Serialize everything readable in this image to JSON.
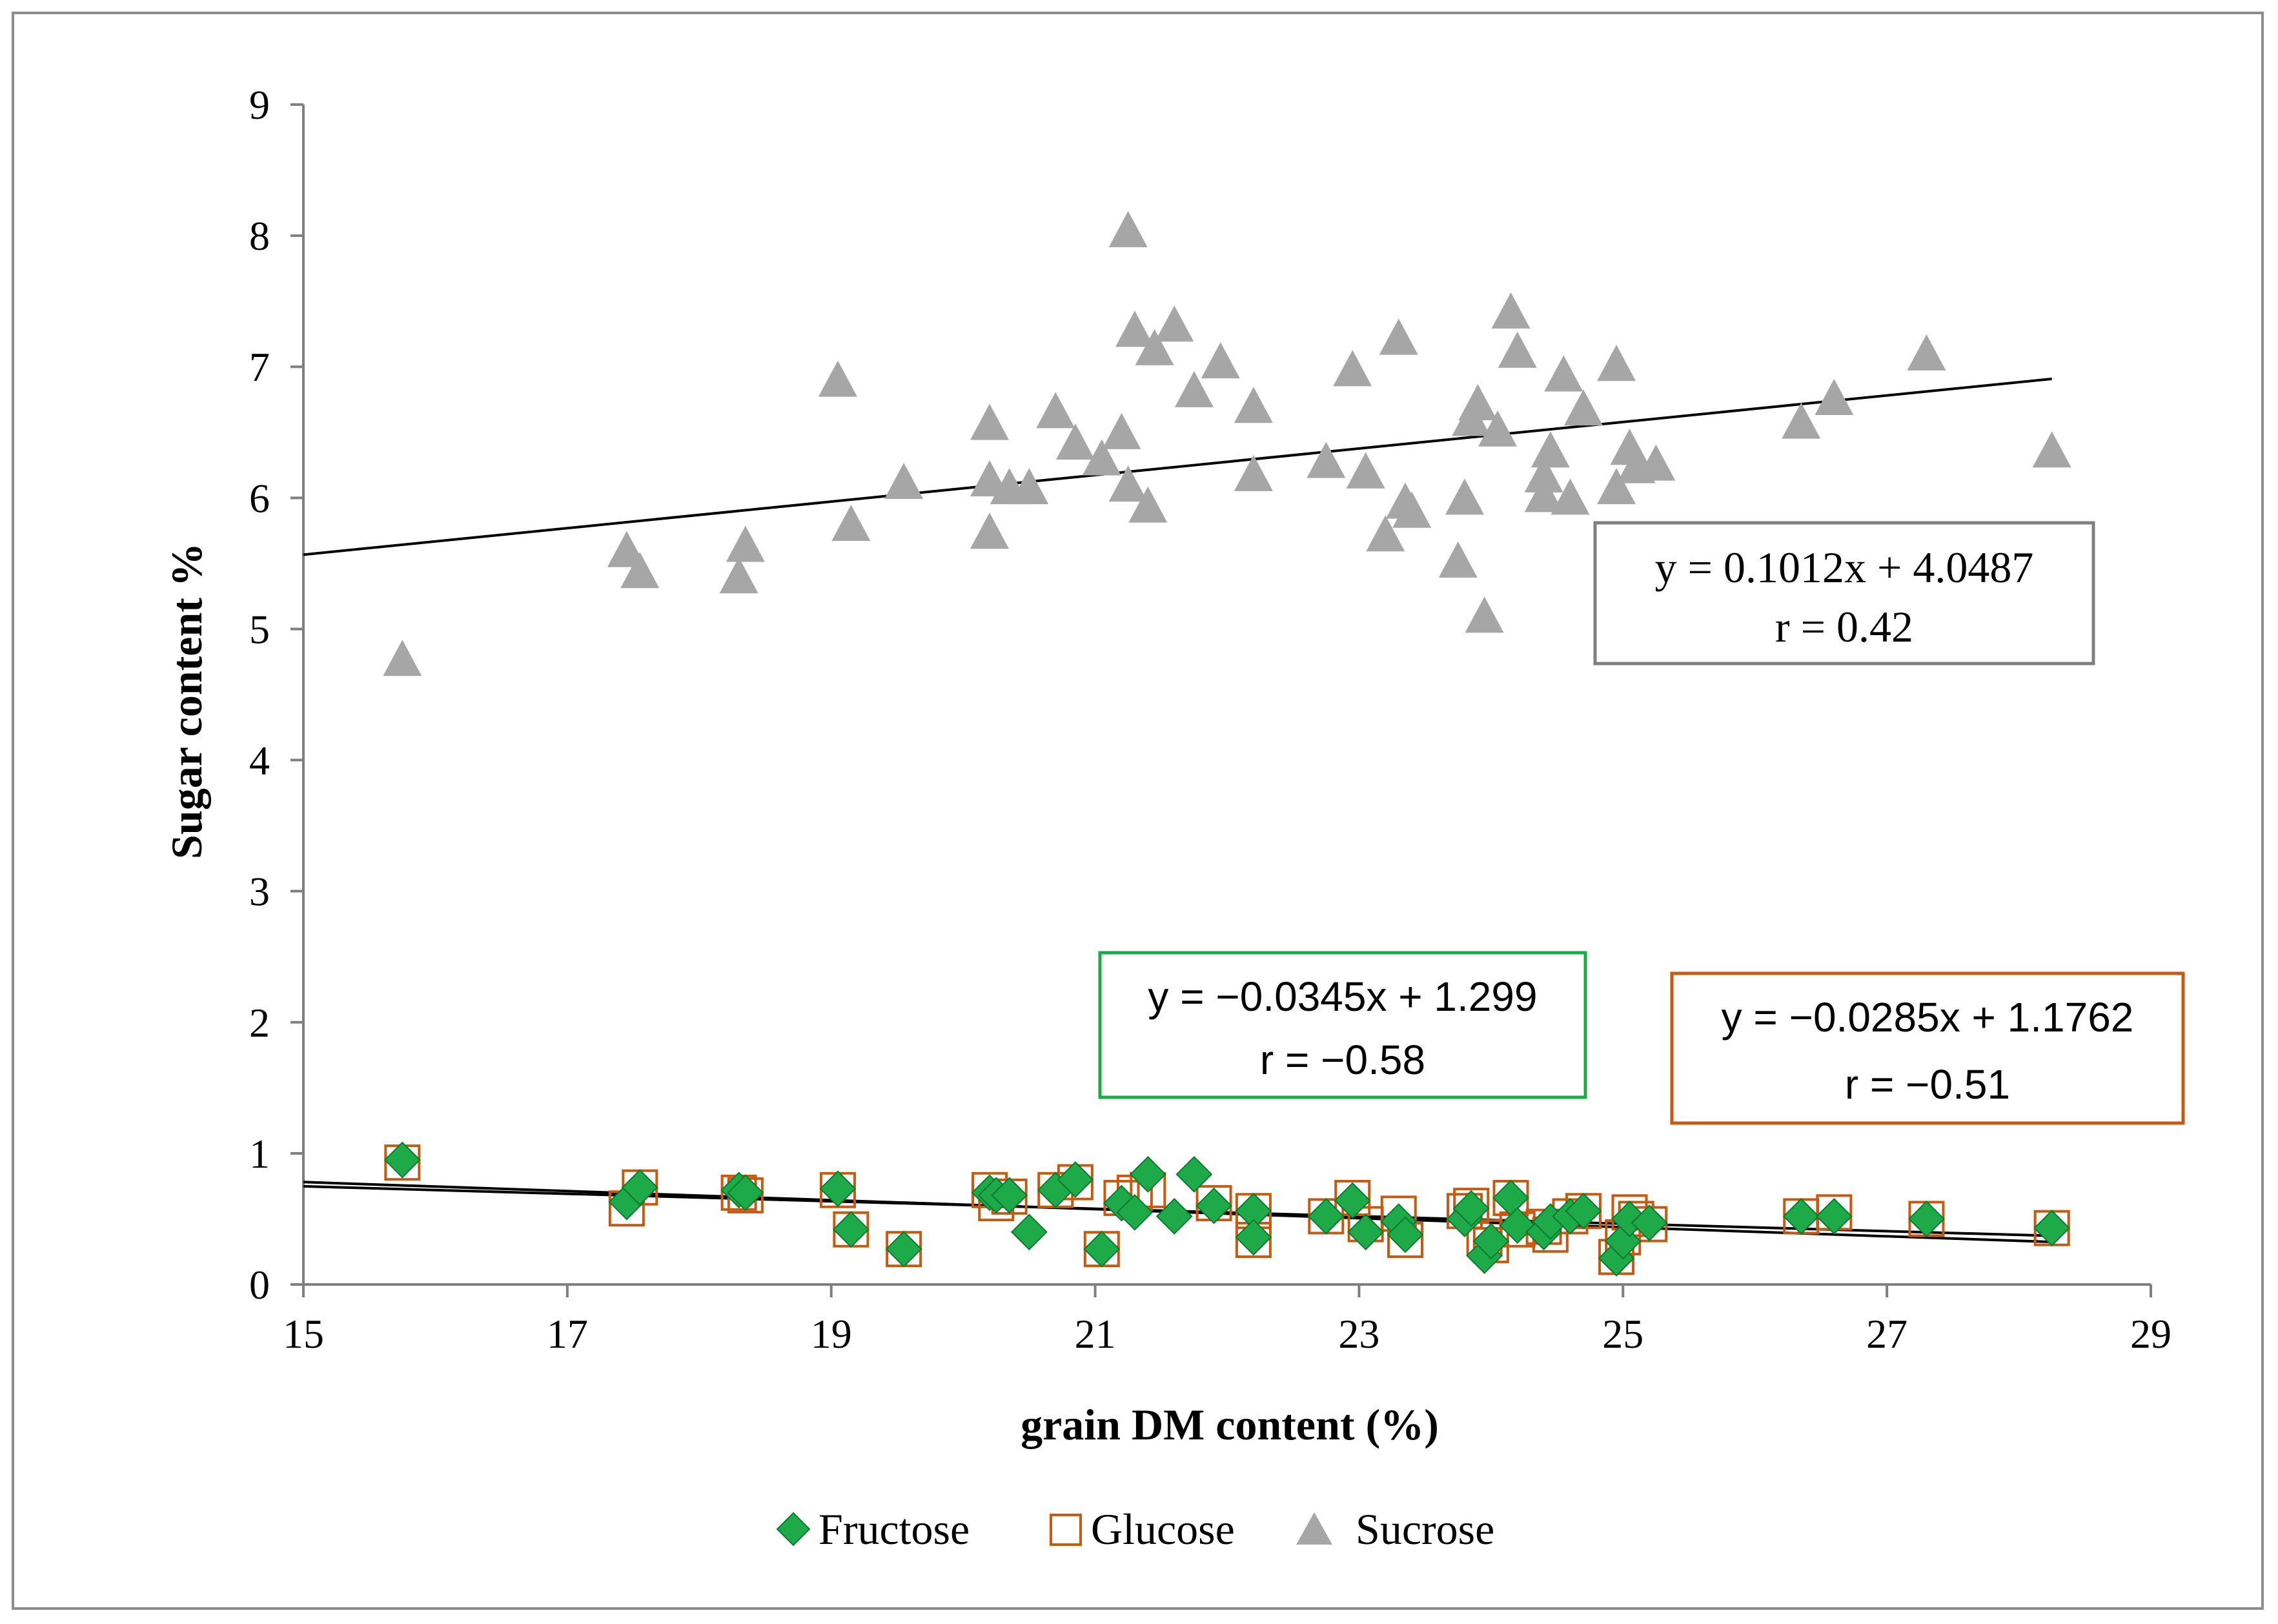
{
  "chart_data": {
    "type": "scatter",
    "title": "",
    "xlabel": "grain DM content (%)",
    "ylabel": "Sugar content %",
    "xlim": [
      15,
      29
    ],
    "ylim": [
      0,
      9
    ],
    "xticks": [
      15,
      17,
      19,
      21,
      23,
      25,
      27,
      29
    ],
    "yticks": [
      0,
      1,
      2,
      3,
      4,
      5,
      6,
      7,
      8,
      9
    ],
    "grid": false,
    "legend_position": "bottom",
    "colors": {
      "fructose": "#1faa4a",
      "fructose_stroke": "#0b7a30",
      "glucose": "#c55a11",
      "sucrose": "#a6a6a6",
      "trendline": "#000000",
      "frame": "#8c8c8c",
      "axis": "#7f7f7f"
    },
    "series": [
      {
        "name": "Fructose",
        "marker": "diamond",
        "points": [
          [
            15.75,
            0.95
          ],
          [
            17.45,
            0.63
          ],
          [
            17.55,
            0.74
          ],
          [
            18.3,
            0.72
          ],
          [
            18.35,
            0.7
          ],
          [
            19.05,
            0.73
          ],
          [
            19.15,
            0.42
          ],
          [
            19.55,
            0.27
          ],
          [
            20.2,
            0.7
          ],
          [
            20.25,
            0.68
          ],
          [
            20.35,
            0.68
          ],
          [
            20.5,
            0.4
          ],
          [
            20.7,
            0.72
          ],
          [
            20.85,
            0.8
          ],
          [
            21.05,
            0.27
          ],
          [
            21.2,
            0.62
          ],
          [
            21.3,
            0.55
          ],
          [
            21.4,
            0.84
          ],
          [
            21.6,
            0.52
          ],
          [
            21.75,
            0.84
          ],
          [
            21.9,
            0.6
          ],
          [
            22.2,
            0.56
          ],
          [
            22.2,
            0.36
          ],
          [
            22.75,
            0.52
          ],
          [
            22.95,
            0.64
          ],
          [
            23.05,
            0.4
          ],
          [
            23.3,
            0.48
          ],
          [
            23.35,
            0.38
          ],
          [
            23.8,
            0.5
          ],
          [
            23.85,
            0.58
          ],
          [
            23.95,
            0.22
          ],
          [
            24.0,
            0.33
          ],
          [
            24.15,
            0.66
          ],
          [
            24.2,
            0.45
          ],
          [
            24.4,
            0.4
          ],
          [
            24.45,
            0.48
          ],
          [
            24.6,
            0.52
          ],
          [
            24.7,
            0.56
          ],
          [
            24.95,
            0.2
          ],
          [
            25.0,
            0.33
          ],
          [
            25.05,
            0.5
          ],
          [
            25.2,
            0.47
          ],
          [
            26.35,
            0.52
          ],
          [
            26.6,
            0.52
          ],
          [
            27.3,
            0.5
          ],
          [
            28.25,
            0.43
          ]
        ]
      },
      {
        "name": "Glucose",
        "marker": "open-square",
        "points": [
          [
            15.75,
            0.93
          ],
          [
            17.45,
            0.58
          ],
          [
            17.55,
            0.74
          ],
          [
            18.3,
            0.7
          ],
          [
            18.35,
            0.68
          ],
          [
            19.05,
            0.72
          ],
          [
            19.15,
            0.42
          ],
          [
            19.55,
            0.27
          ],
          [
            20.2,
            0.72
          ],
          [
            20.25,
            0.62
          ],
          [
            20.35,
            0.67
          ],
          [
            20.7,
            0.72
          ],
          [
            20.85,
            0.78
          ],
          [
            21.05,
            0.27
          ],
          [
            21.2,
            0.66
          ],
          [
            21.3,
            0.7
          ],
          [
            21.4,
            0.72
          ],
          [
            21.9,
            0.62
          ],
          [
            22.2,
            0.56
          ],
          [
            22.2,
            0.34
          ],
          [
            22.75,
            0.52
          ],
          [
            22.95,
            0.66
          ],
          [
            23.05,
            0.46
          ],
          [
            23.3,
            0.54
          ],
          [
            23.35,
            0.34
          ],
          [
            23.8,
            0.56
          ],
          [
            23.85,
            0.6
          ],
          [
            23.95,
            0.36
          ],
          [
            24.0,
            0.3
          ],
          [
            24.15,
            0.66
          ],
          [
            24.2,
            0.42
          ],
          [
            24.4,
            0.44
          ],
          [
            24.45,
            0.38
          ],
          [
            24.6,
            0.52
          ],
          [
            24.7,
            0.56
          ],
          [
            24.95,
            0.21
          ],
          [
            25.0,
            0.36
          ],
          [
            25.05,
            0.55
          ],
          [
            25.1,
            0.5
          ],
          [
            25.2,
            0.46
          ],
          [
            26.35,
            0.52
          ],
          [
            26.6,
            0.55
          ],
          [
            27.3,
            0.5
          ],
          [
            28.25,
            0.43
          ]
        ]
      },
      {
        "name": "Sucrose",
        "marker": "triangle",
        "points": [
          [
            15.75,
            4.75
          ],
          [
            17.45,
            5.58
          ],
          [
            17.55,
            5.42
          ],
          [
            18.3,
            5.38
          ],
          [
            18.35,
            5.62
          ],
          [
            19.05,
            6.88
          ],
          [
            19.15,
            5.78
          ],
          [
            19.55,
            6.1
          ],
          [
            20.2,
            6.55
          ],
          [
            20.2,
            6.12
          ],
          [
            20.2,
            5.72
          ],
          [
            20.35,
            6.06
          ],
          [
            20.5,
            6.06
          ],
          [
            20.7,
            6.64
          ],
          [
            20.85,
            6.4
          ],
          [
            21.05,
            6.28
          ],
          [
            21.2,
            6.48
          ],
          [
            21.25,
            8.02
          ],
          [
            21.25,
            6.08
          ],
          [
            21.3,
            7.26
          ],
          [
            21.4,
            5.92
          ],
          [
            21.45,
            7.12
          ],
          [
            21.6,
            7.3
          ],
          [
            21.75,
            6.8
          ],
          [
            21.95,
            7.02
          ],
          [
            22.2,
            6.68
          ],
          [
            22.2,
            6.16
          ],
          [
            22.75,
            6.26
          ],
          [
            22.95,
            6.96
          ],
          [
            23.05,
            6.18
          ],
          [
            23.2,
            5.7
          ],
          [
            23.3,
            7.2
          ],
          [
            23.35,
            5.95
          ],
          [
            23.4,
            5.88
          ],
          [
            23.75,
            5.5
          ],
          [
            23.8,
            5.98
          ],
          [
            23.85,
            6.58
          ],
          [
            23.9,
            6.7
          ],
          [
            23.95,
            5.08
          ],
          [
            24.05,
            6.5
          ],
          [
            24.15,
            7.4
          ],
          [
            24.2,
            7.1
          ],
          [
            24.4,
            6.0
          ],
          [
            24.4,
            6.15
          ],
          [
            24.45,
            6.34
          ],
          [
            24.55,
            6.92
          ],
          [
            24.6,
            5.98
          ],
          [
            24.7,
            6.66
          ],
          [
            24.95,
            7.0
          ],
          [
            24.95,
            6.06
          ],
          [
            25.05,
            6.36
          ],
          [
            25.1,
            6.22
          ],
          [
            25.25,
            6.24
          ],
          [
            26.35,
            6.56
          ],
          [
            26.6,
            6.74
          ],
          [
            27.3,
            7.08
          ],
          [
            28.25,
            6.34
          ]
        ]
      }
    ],
    "trendlines": [
      {
        "series": "Sucrose",
        "slope": 0.1012,
        "intercept": 4.0487,
        "x_range": [
          15,
          28.25
        ]
      },
      {
        "series": "Fructose",
        "slope": -0.0345,
        "intercept": 1.299,
        "x_range": [
          15,
          28.25
        ]
      },
      {
        "series": "Glucose",
        "slope": -0.0285,
        "intercept": 1.1762,
        "x_range": [
          15,
          28.25
        ]
      }
    ],
    "annotations": [
      {
        "series": "Sucrose",
        "equation": "y = 0.1012x + 4.0487",
        "r": "r = 0.42"
      },
      {
        "series": "Fructose",
        "equation": "y = −0.0345x + 1.299",
        "r": "r = −0.58"
      },
      {
        "series": "Glucose",
        "equation": "y = −0.0285x + 1.1762",
        "r": "r = −0.51"
      }
    ]
  }
}
